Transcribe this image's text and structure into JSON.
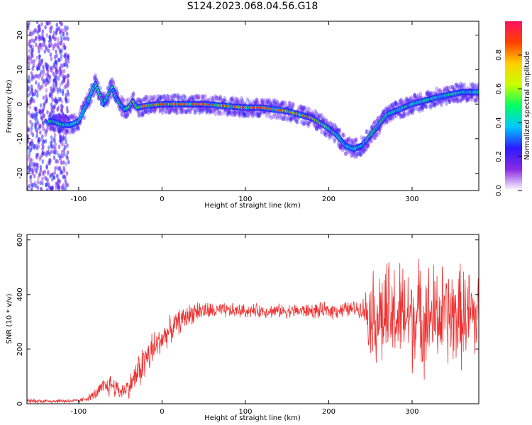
{
  "title": "S124.2023.068.04.56.G18",
  "chart_data": [
    {
      "type": "heatmap",
      "xlabel": "Height of straight line (km)",
      "ylabel": "Frequency (Hz)",
      "xlim": [
        -162,
        380
      ],
      "ylim": [
        -25,
        24
      ],
      "xticks": [
        -100,
        0,
        100,
        200,
        300
      ],
      "yticks": [
        -20,
        -10,
        0,
        10,
        20
      ],
      "colorbar": {
        "label": "Normalized spectral amplitude",
        "range": [
          0,
          1
        ],
        "ticks": [
          "0.0",
          "0.2",
          "0.4",
          "0.6",
          "0.8"
        ],
        "colormap": [
          "#ffffff",
          "#8a2be2",
          "#2b1aff",
          "#00c8ff",
          "#00ff66",
          "#c8ff00",
          "#ffd000",
          "#ff4000",
          "#ff1060"
        ]
      },
      "ridge": {
        "x": [
          -130,
          -120,
          -110,
          -100,
          -90,
          -80,
          -70,
          -60,
          -55,
          -50,
          -45,
          -40,
          -35,
          -30,
          -20,
          0,
          50,
          100,
          120,
          150,
          180,
          200,
          210,
          220,
          230,
          240,
          250,
          270,
          300,
          330,
          360,
          380
        ],
        "y": [
          -5,
          -6,
          -6,
          -5,
          0,
          6,
          0,
          5,
          2,
          0,
          -1.5,
          -1,
          1,
          -1,
          -0.5,
          0,
          0,
          -1,
          -1,
          -2,
          -4,
          -7,
          -9,
          -12,
          -13,
          -12,
          -9,
          -3,
          0,
          2,
          3.5,
          3.5
        ]
      }
    },
    {
      "type": "line",
      "xlabel": "Height of straight line (km)",
      "ylabel": "SNR (10 * v/v)",
      "xlim": [
        -162,
        380
      ],
      "ylim": [
        0,
        620
      ],
      "xticks": [
        -100,
        0,
        100,
        200,
        300
      ],
      "yticks": [
        0,
        200,
        400,
        600
      ],
      "color": "#ee3030",
      "envelope": {
        "x": [
          -162,
          -100,
          -90,
          -80,
          -70,
          -60,
          -50,
          -40,
          -30,
          -20,
          -10,
          0,
          20,
          40,
          60,
          100,
          150,
          200,
          240,
          250,
          260,
          300,
          340,
          380
        ],
        "mean": [
          10,
          10,
          20,
          35,
          60,
          70,
          45,
          60,
          110,
          160,
          200,
          240,
          300,
          340,
          340,
          340,
          340,
          340,
          350,
          330,
          320,
          320,
          320,
          320
        ],
        "spread": [
          8,
          8,
          10,
          20,
          35,
          45,
          30,
          40,
          60,
          80,
          70,
          50,
          45,
          40,
          30,
          25,
          25,
          30,
          30,
          150,
          200,
          200,
          190,
          180
        ]
      }
    }
  ]
}
